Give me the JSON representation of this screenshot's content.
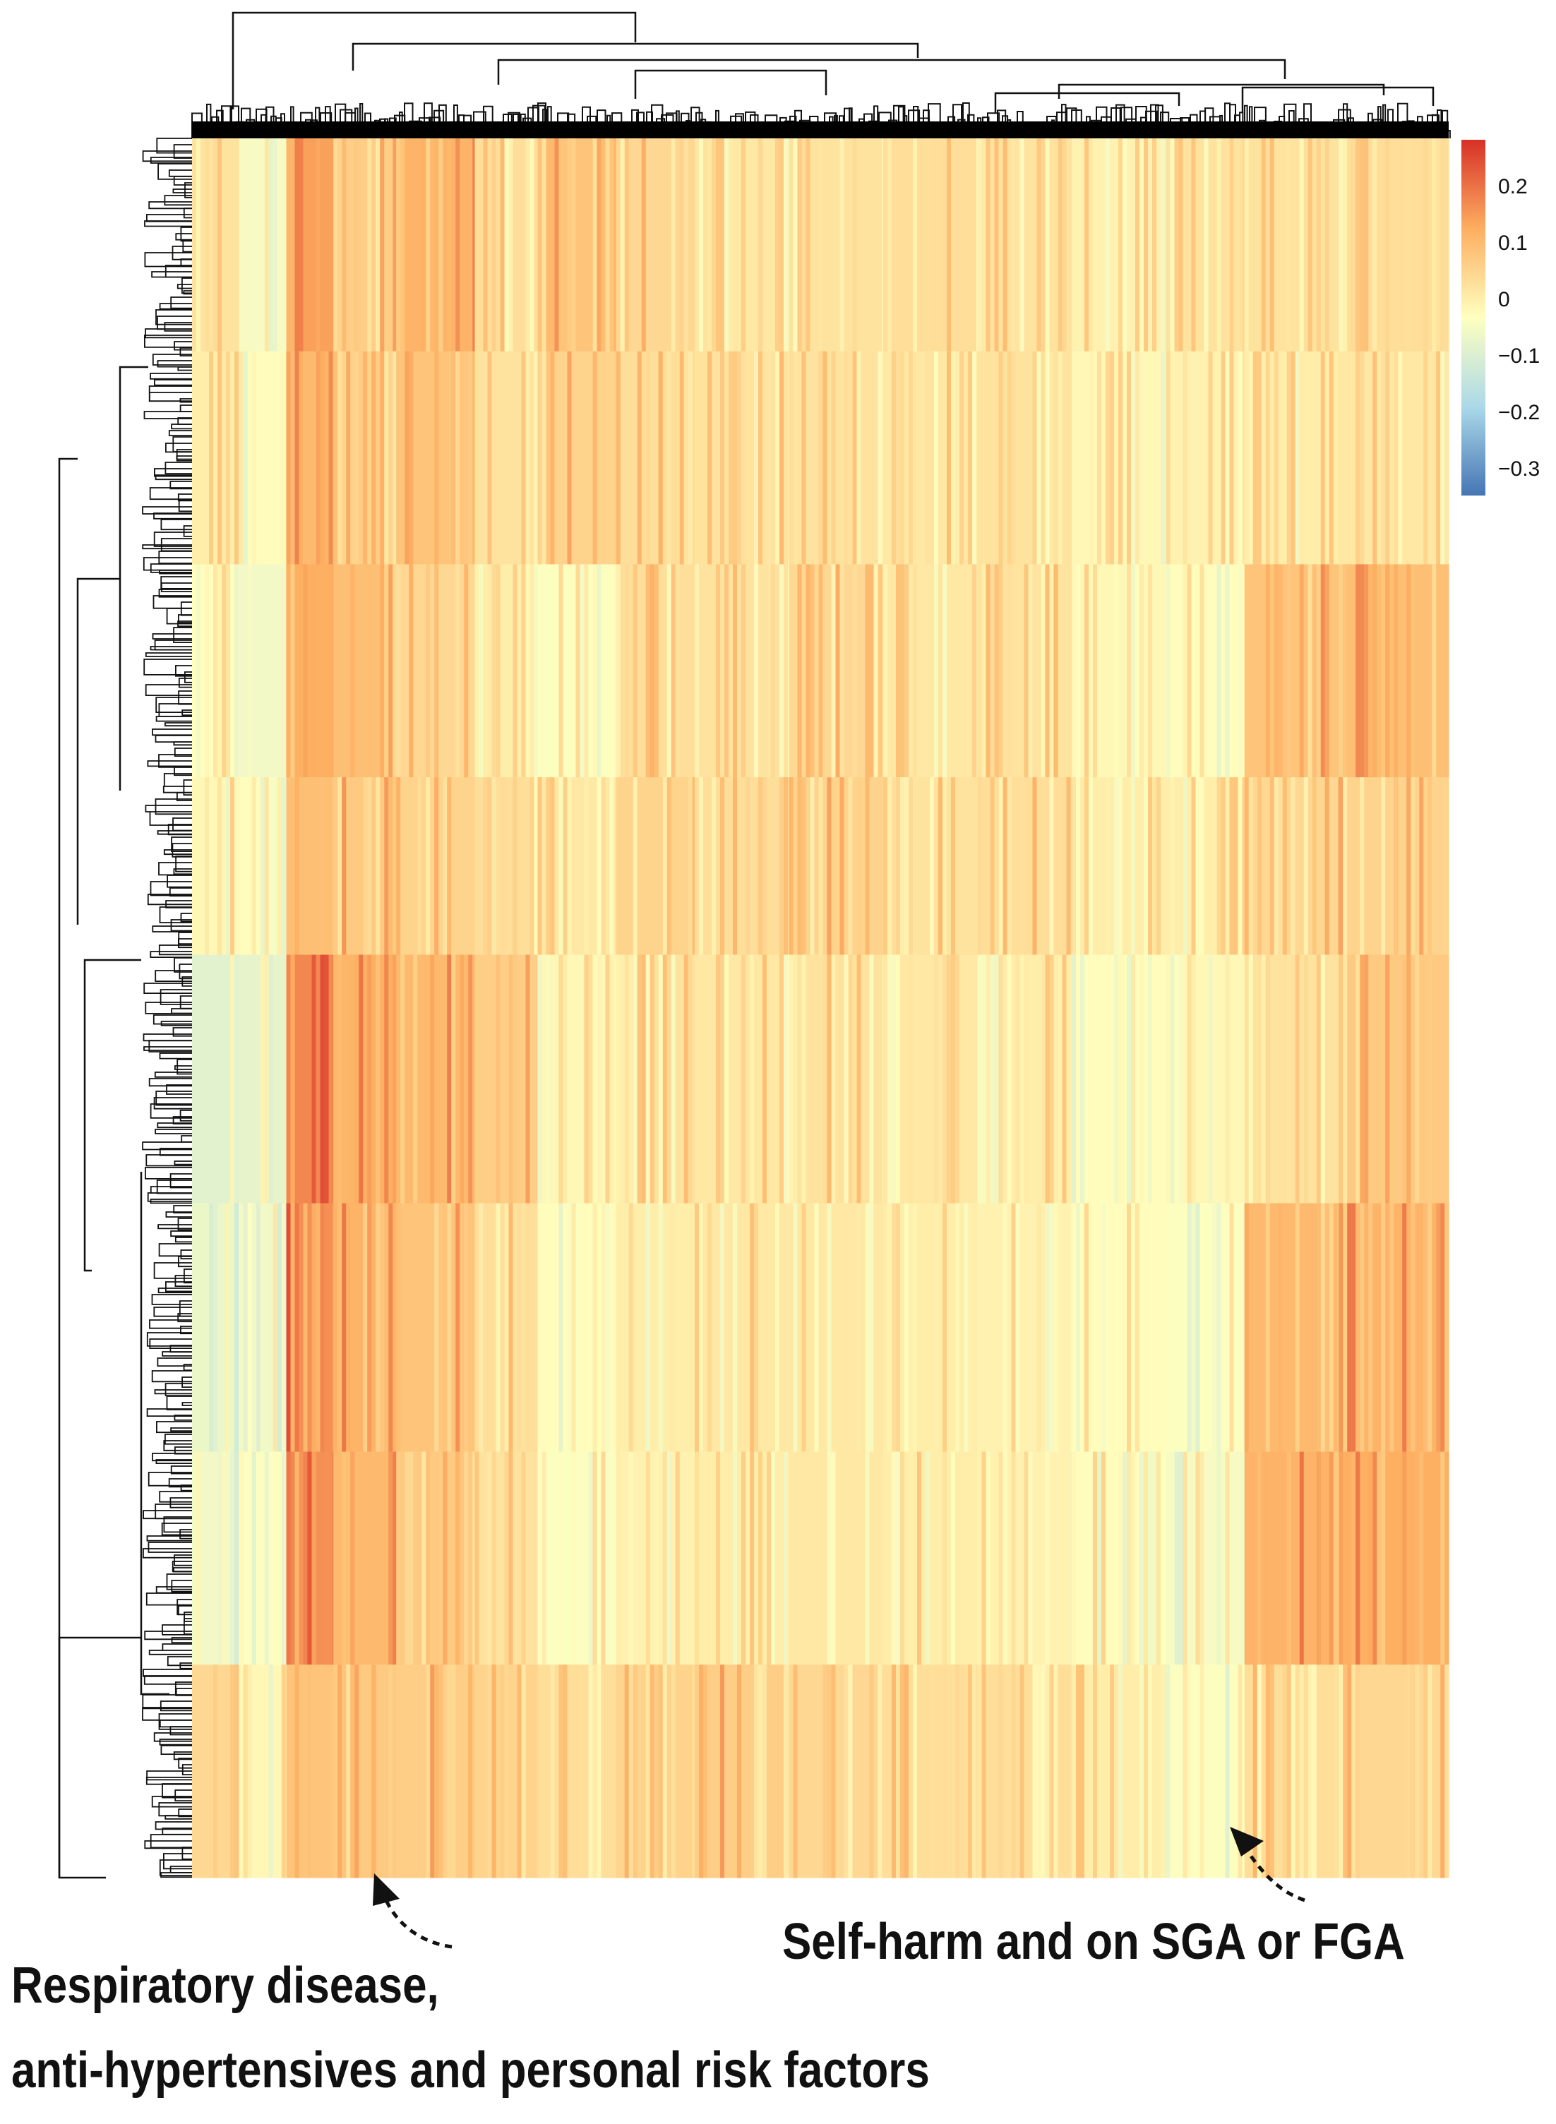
{
  "chart_data": {
    "type": "heatmap",
    "title": "",
    "xlabel": "",
    "ylabel": "",
    "row_dendrogram": true,
    "column_dendrogram": true,
    "grid": false,
    "legend_position": "top-right",
    "colorbar": {
      "min": -0.35,
      "max": 0.28,
      "ticks": [
        {
          "value": 0.2,
          "label": "0.2"
        },
        {
          "value": 0.1,
          "label": "0.1"
        },
        {
          "value": 0,
          "label": "0"
        },
        {
          "value": -0.1,
          "label": "−0.1"
        },
        {
          "value": -0.2,
          "label": "−0.2"
        },
        {
          "value": -0.3,
          "label": "−0.3"
        }
      ],
      "colors": [
        "#4575b4",
        "#abd9e9",
        "#ffffbf",
        "#fdae61",
        "#d73027"
      ]
    },
    "row_clusters": [
      {
        "weight": 6,
        "values": [
          0.02,
          -0.05,
          0.14,
          0.06,
          0.11,
          0.03,
          0.08,
          0.04,
          0.01,
          0.02,
          0.03,
          0.02,
          -0.01,
          0.02,
          0.02,
          0.03
        ]
      },
      {
        "weight": 6,
        "values": [
          0.0,
          -0.03,
          0.1,
          0.05,
          0.08,
          0.02,
          0.05,
          0.03,
          0.02,
          0.02,
          0.01,
          0.02,
          -0.02,
          -0.01,
          0.0,
          0.01
        ]
      },
      {
        "weight": 6,
        "values": [
          -0.03,
          -0.06,
          0.12,
          0.09,
          0.04,
          0.0,
          -0.04,
          0.03,
          0.02,
          0.04,
          0.01,
          0.02,
          -0.02,
          -0.03,
          0.08,
          0.09
        ]
      },
      {
        "weight": 5,
        "values": [
          -0.02,
          -0.03,
          0.09,
          0.07,
          0.05,
          0.03,
          0.01,
          0.05,
          0.03,
          0.05,
          0.02,
          0.03,
          0.0,
          0.0,
          0.04,
          0.05
        ]
      },
      {
        "weight": 7,
        "values": [
          -0.09,
          -0.08,
          0.17,
          0.12,
          0.1,
          0.06,
          -0.02,
          0.02,
          0.01,
          0.02,
          0.01,
          0.0,
          -0.03,
          -0.02,
          0.02,
          0.07
        ]
      },
      {
        "weight": 7,
        "values": [
          -0.07,
          -0.06,
          0.16,
          0.11,
          0.08,
          0.03,
          -0.03,
          0.0,
          0.01,
          0.01,
          0.0,
          -0.01,
          -0.03,
          -0.04,
          0.1,
          0.11
        ]
      },
      {
        "weight": 6,
        "values": [
          -0.06,
          -0.04,
          0.16,
          0.1,
          0.07,
          0.02,
          -0.04,
          -0.01,
          0.0,
          0.01,
          0.0,
          -0.01,
          -0.03,
          -0.05,
          0.11,
          0.12
        ]
      },
      {
        "weight": 6,
        "values": [
          0.04,
          -0.02,
          0.08,
          0.07,
          0.06,
          0.05,
          0.03,
          0.05,
          0.06,
          0.04,
          0.03,
          0.03,
          0.0,
          -0.04,
          0.03,
          0.04
        ]
      }
    ],
    "column_groups": [
      {
        "weight": 3,
        "label": ""
      },
      {
        "weight": 3,
        "label": ""
      },
      {
        "weight": 3,
        "label": ""
      },
      {
        "weight": 4,
        "label": ""
      },
      {
        "weight": 5,
        "label": ""
      },
      {
        "weight": 4,
        "label": ""
      },
      {
        "weight": 5,
        "label": ""
      },
      {
        "weight": 5,
        "label": ""
      },
      {
        "weight": 6,
        "label": ""
      },
      {
        "weight": 6,
        "label": ""
      },
      {
        "weight": 6,
        "label": ""
      },
      {
        "weight": 6,
        "label": ""
      },
      {
        "weight": 6,
        "label": ""
      },
      {
        "weight": 5,
        "label": ""
      },
      {
        "weight": 6,
        "label": ""
      },
      {
        "weight": 7,
        "label": ""
      }
    ]
  },
  "annotations": {
    "self_harm": "Self-harm and on SGA or FGA",
    "respiratory_line1": "Respiratory disease,",
    "respiratory_line2": "anti-hypertensives and personal risk factors"
  }
}
